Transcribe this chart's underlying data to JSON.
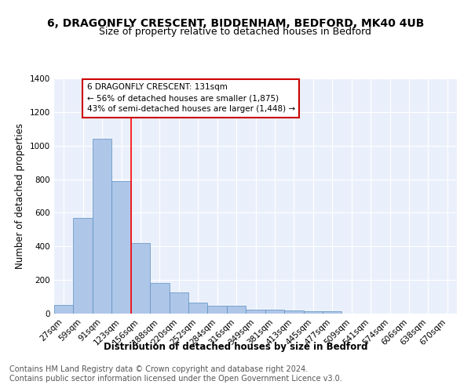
{
  "title": "6, DRAGONFLY CRESCENT, BIDDENHAM, BEDFORD, MK40 4UB",
  "subtitle": "Size of property relative to detached houses in Bedford",
  "xlabel": "Distribution of detached houses by size in Bedford",
  "ylabel": "Number of detached properties",
  "categories": [
    "27sqm",
    "59sqm",
    "91sqm",
    "123sqm",
    "156sqm",
    "188sqm",
    "220sqm",
    "252sqm",
    "284sqm",
    "316sqm",
    "349sqm",
    "381sqm",
    "413sqm",
    "445sqm",
    "477sqm",
    "509sqm",
    "541sqm",
    "574sqm",
    "606sqm",
    "638sqm",
    "670sqm"
  ],
  "values": [
    50,
    570,
    1040,
    790,
    420,
    180,
    125,
    65,
    45,
    48,
    25,
    25,
    18,
    12,
    12,
    0,
    0,
    0,
    0,
    0,
    0
  ],
  "bar_color": "#aec6e8",
  "bar_edge_color": "#5a8fc0",
  "annotation_text": "6 DRAGONFLY CRESCENT: 131sqm\n← 56% of detached houses are smaller (1,875)\n43% of semi-detached houses are larger (1,448) →",
  "annotation_box_color": "#ffffff",
  "annotation_box_edge_color": "#cc0000",
  "ylim": [
    0,
    1400
  ],
  "yticks": [
    0,
    200,
    400,
    600,
    800,
    1000,
    1200,
    1400
  ],
  "footer_line1": "Contains HM Land Registry data © Crown copyright and database right 2024.",
  "footer_line2": "Contains public sector information licensed under the Open Government Licence v3.0.",
  "plot_bg_color": "#eaf0fb",
  "title_fontsize": 10,
  "subtitle_fontsize": 9,
  "label_fontsize": 8.5,
  "tick_fontsize": 7.5,
  "footer_fontsize": 7,
  "annotation_fontsize": 7.5
}
